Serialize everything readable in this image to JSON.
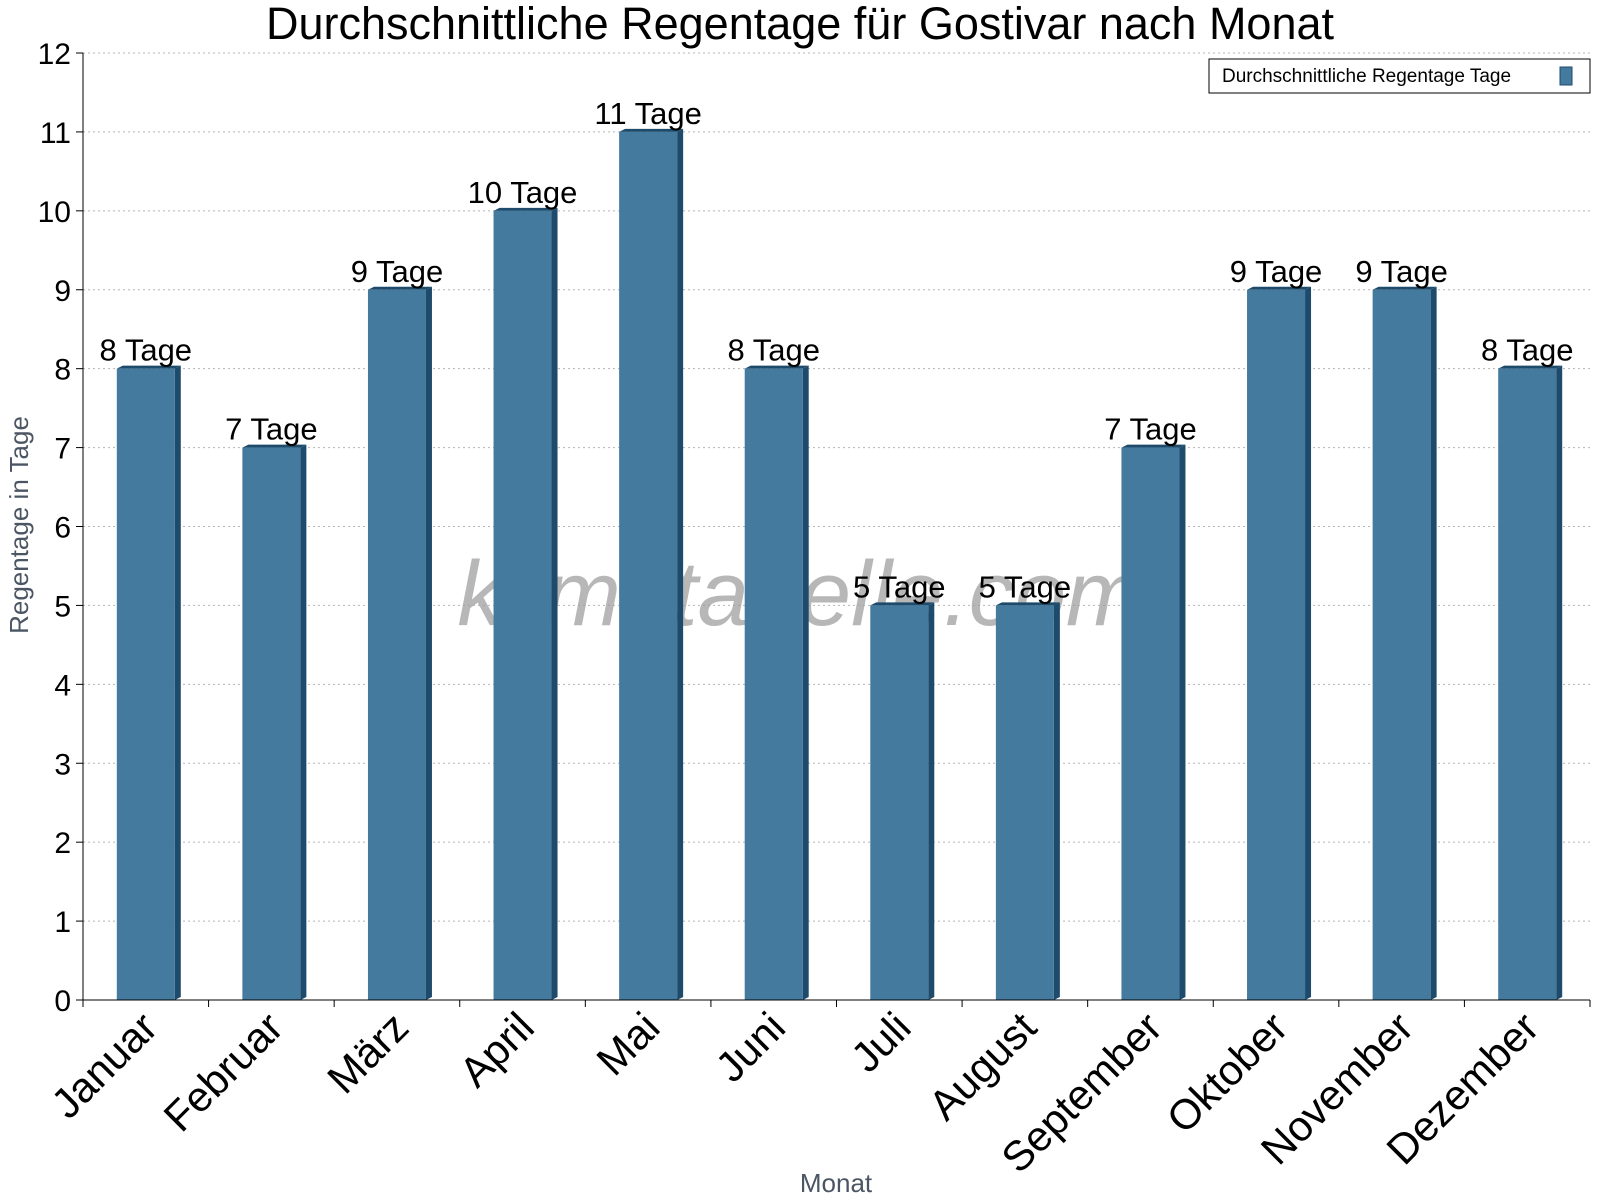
{
  "chart_data": {
    "type": "bar",
    "title": "Durchschnittliche Regentage für Gostivar nach Monat",
    "xlabel": "Monat",
    "ylabel": "Regentage in Tage",
    "ylim": [
      0,
      12
    ],
    "yticks": [
      "0",
      "1",
      "2",
      "3",
      "4",
      "5",
      "6",
      "7",
      "8",
      "9",
      "10",
      "11",
      "12"
    ],
    "grid": true,
    "legend_position": "top-right",
    "categories": [
      "Januar",
      "Februar",
      "März",
      "April",
      "Mai",
      "Juni",
      "Juli",
      "August",
      "September",
      "Oktober",
      "November",
      "Dezember"
    ],
    "series": [
      {
        "name": "Durchschnittliche Regentage Tage",
        "values": [
          8,
          7,
          9,
          10,
          11,
          8,
          5,
          5,
          7,
          9,
          9,
          8
        ],
        "labels": [
          "8 Tage",
          "7 Tage",
          "9 Tage",
          "10 Tage",
          "11 Tage",
          "8 Tage",
          "5 Tage",
          "5 Tage",
          "7 Tage",
          "9 Tage",
          "9 Tage",
          "8 Tage"
        ],
        "color": "#447a9e",
        "edge_color": "#1e4b6b"
      }
    ]
  },
  "watermark": "klimatabelle.com"
}
